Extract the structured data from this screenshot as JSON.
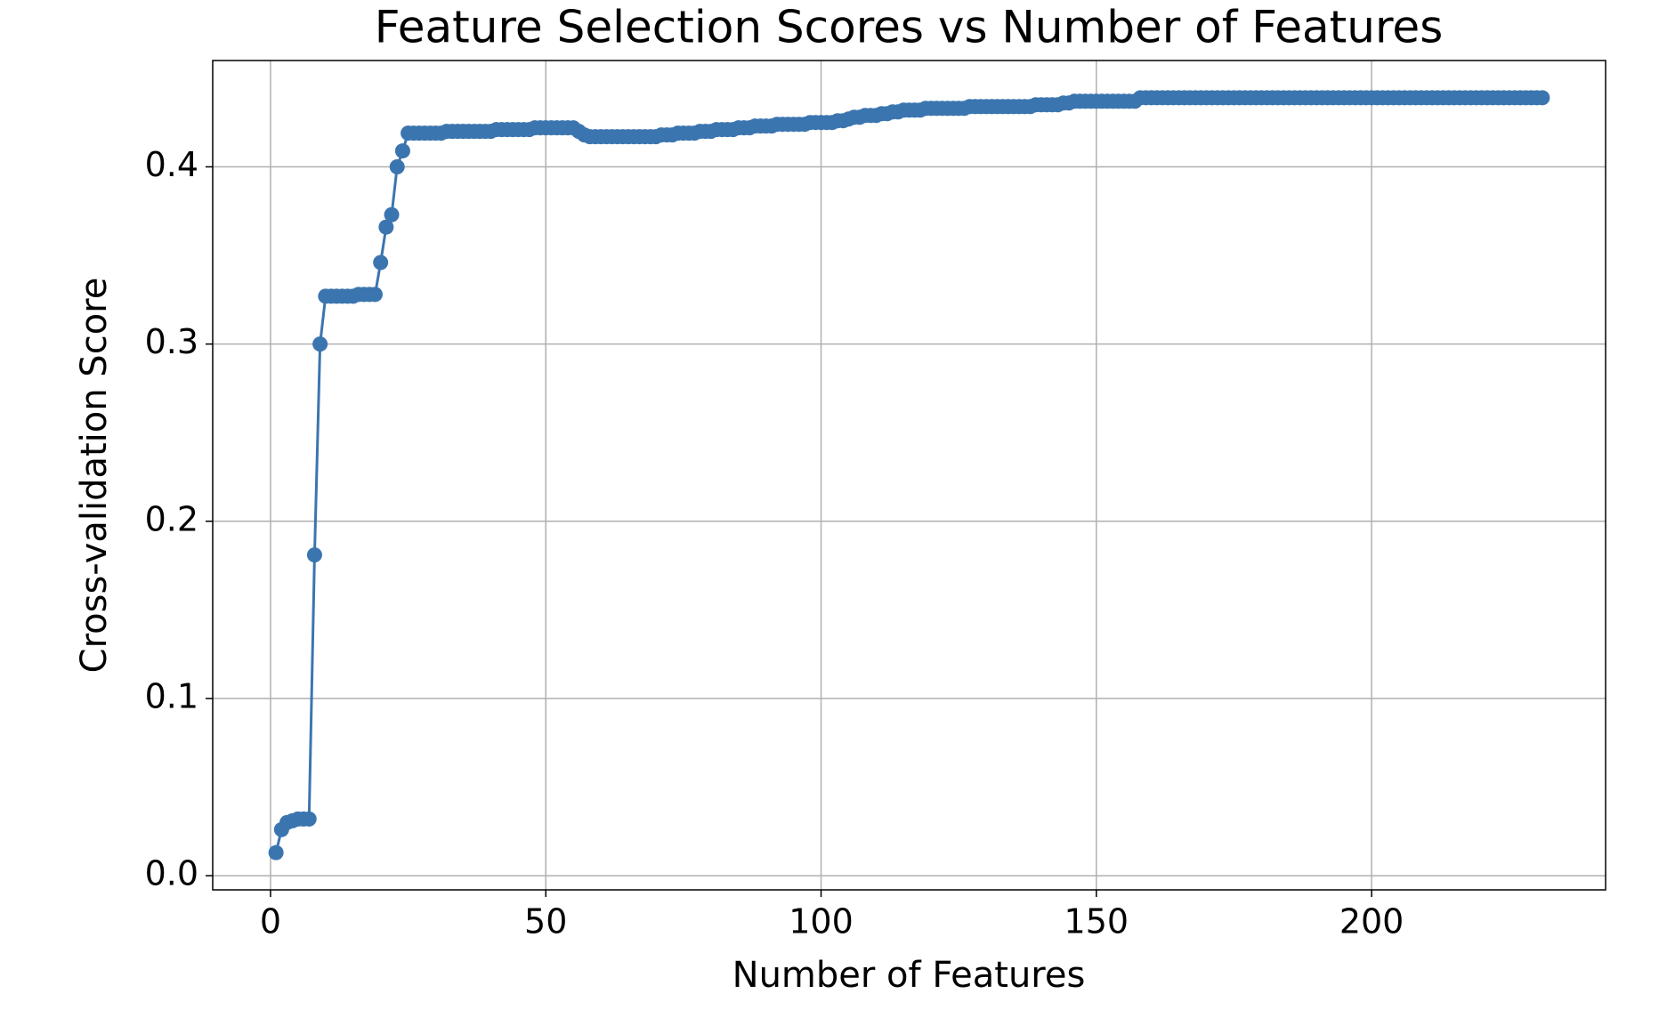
{
  "chart_data": {
    "type": "line",
    "title": "Feature Selection Scores vs Number of Features",
    "x_label": "Number of Features",
    "y_label": "Cross-validation Score",
    "x": [
      1,
      2,
      3,
      4,
      5,
      6,
      7,
      8,
      9,
      10,
      11,
      12,
      13,
      14,
      15,
      16,
      17,
      18,
      19,
      20,
      21,
      22,
      23,
      24,
      25,
      26,
      27,
      28,
      29,
      30,
      31,
      32,
      33,
      34,
      35,
      36,
      37,
      38,
      39,
      40,
      41,
      42,
      43,
      44,
      45,
      46,
      47,
      48,
      49,
      50,
      51,
      52,
      53,
      54,
      55,
      56,
      57,
      58,
      59,
      60,
      61,
      62,
      63,
      64,
      65,
      66,
      67,
      68,
      69,
      70,
      71,
      72,
      73,
      74,
      75,
      76,
      77,
      78,
      79,
      80,
      81,
      82,
      83,
      84,
      85,
      86,
      87,
      88,
      89,
      90,
      91,
      92,
      93,
      94,
      95,
      96,
      97,
      98,
      99,
      100,
      101,
      102,
      103,
      104,
      105,
      106,
      107,
      108,
      109,
      110,
      111,
      112,
      113,
      114,
      115,
      116,
      117,
      118,
      119,
      120,
      121,
      122,
      123,
      124,
      125,
      126,
      127,
      128,
      129,
      130,
      131,
      132,
      133,
      134,
      135,
      136,
      137,
      138,
      139,
      140,
      141,
      142,
      143,
      144,
      145,
      146,
      147,
      148,
      149,
      150,
      151,
      152,
      153,
      154,
      155,
      156,
      157,
      158,
      159,
      160,
      161,
      162,
      163,
      164,
      165,
      166,
      167,
      168,
      169,
      170,
      171,
      172,
      173,
      174,
      175,
      176,
      177,
      178,
      179,
      180,
      181,
      182,
      183,
      184,
      185,
      186,
      187,
      188,
      189,
      190,
      191,
      192,
      193,
      194,
      195,
      196,
      197,
      198,
      199,
      200,
      201,
      202,
      203,
      204,
      205,
      206,
      207,
      208,
      209,
      210,
      211,
      212,
      213,
      214,
      215,
      216,
      217,
      218,
      219,
      220,
      221,
      222,
      223,
      224,
      225,
      226,
      227,
      228,
      229,
      230,
      231
    ],
    "series": [
      {
        "name": "Cross-validation Score",
        "color": "#3b75af",
        "values": [
          0.013,
          0.026,
          0.03,
          0.031,
          0.032,
          0.032,
          0.032,
          0.181,
          0.3,
          0.327,
          0.327,
          0.327,
          0.327,
          0.327,
          0.327,
          0.328,
          0.328,
          0.328,
          0.328,
          0.346,
          0.366,
          0.373,
          0.4,
          0.409,
          0.419,
          0.419,
          0.419,
          0.419,
          0.419,
          0.419,
          0.419,
          0.42,
          0.42,
          0.42,
          0.42,
          0.42,
          0.42,
          0.42,
          0.42,
          0.42,
          0.421,
          0.421,
          0.421,
          0.421,
          0.421,
          0.421,
          0.421,
          0.422,
          0.422,
          0.422,
          0.422,
          0.422,
          0.422,
          0.422,
          0.422,
          0.42,
          0.418,
          0.417,
          0.417,
          0.417,
          0.417,
          0.417,
          0.417,
          0.417,
          0.417,
          0.417,
          0.417,
          0.417,
          0.417,
          0.417,
          0.418,
          0.418,
          0.418,
          0.419,
          0.419,
          0.419,
          0.419,
          0.42,
          0.42,
          0.42,
          0.421,
          0.421,
          0.421,
          0.421,
          0.422,
          0.422,
          0.422,
          0.423,
          0.423,
          0.423,
          0.423,
          0.424,
          0.424,
          0.424,
          0.424,
          0.424,
          0.424,
          0.425,
          0.425,
          0.425,
          0.425,
          0.425,
          0.426,
          0.426,
          0.427,
          0.428,
          0.428,
          0.429,
          0.429,
          0.429,
          0.43,
          0.43,
          0.431,
          0.431,
          0.432,
          0.432,
          0.432,
          0.432,
          0.433,
          0.433,
          0.433,
          0.433,
          0.433,
          0.433,
          0.433,
          0.433,
          0.434,
          0.434,
          0.434,
          0.434,
          0.434,
          0.434,
          0.434,
          0.434,
          0.434,
          0.434,
          0.434,
          0.434,
          0.435,
          0.435,
          0.435,
          0.435,
          0.435,
          0.436,
          0.436,
          0.437,
          0.437,
          0.437,
          0.437,
          0.437,
          0.437,
          0.437,
          0.437,
          0.437,
          0.437,
          0.437,
          0.437,
          0.439,
          0.439,
          0.439,
          0.439,
          0.439,
          0.439,
          0.439,
          0.439,
          0.439,
          0.439,
          0.439,
          0.439,
          0.439,
          0.439,
          0.439,
          0.439,
          0.439,
          0.439,
          0.439,
          0.439,
          0.439,
          0.439,
          0.439,
          0.439,
          0.439,
          0.439,
          0.439,
          0.439,
          0.439,
          0.439,
          0.439,
          0.439,
          0.439,
          0.439,
          0.439,
          0.439,
          0.439,
          0.439,
          0.439,
          0.439,
          0.439,
          0.439,
          0.439,
          0.439,
          0.439,
          0.439,
          0.439,
          0.439,
          0.439,
          0.439,
          0.439,
          0.439,
          0.439,
          0.439,
          0.439,
          0.439,
          0.439,
          0.439,
          0.439,
          0.439,
          0.439,
          0.439,
          0.439,
          0.439,
          0.439,
          0.439,
          0.439,
          0.439,
          0.439,
          0.439,
          0.439,
          0.439,
          0.439,
          0.439
        ]
      }
    ],
    "xlim": [
      -10.5,
      242.5
    ],
    "ylim": [
      -0.008,
      0.46
    ],
    "xticks": [
      0,
      50,
      100,
      150,
      200
    ],
    "yticks": [
      {
        "value": 0,
        "label": "0.0"
      },
      0.1,
      0.2,
      0.3,
      0.4
    ],
    "grid": true,
    "markers": true
  }
}
